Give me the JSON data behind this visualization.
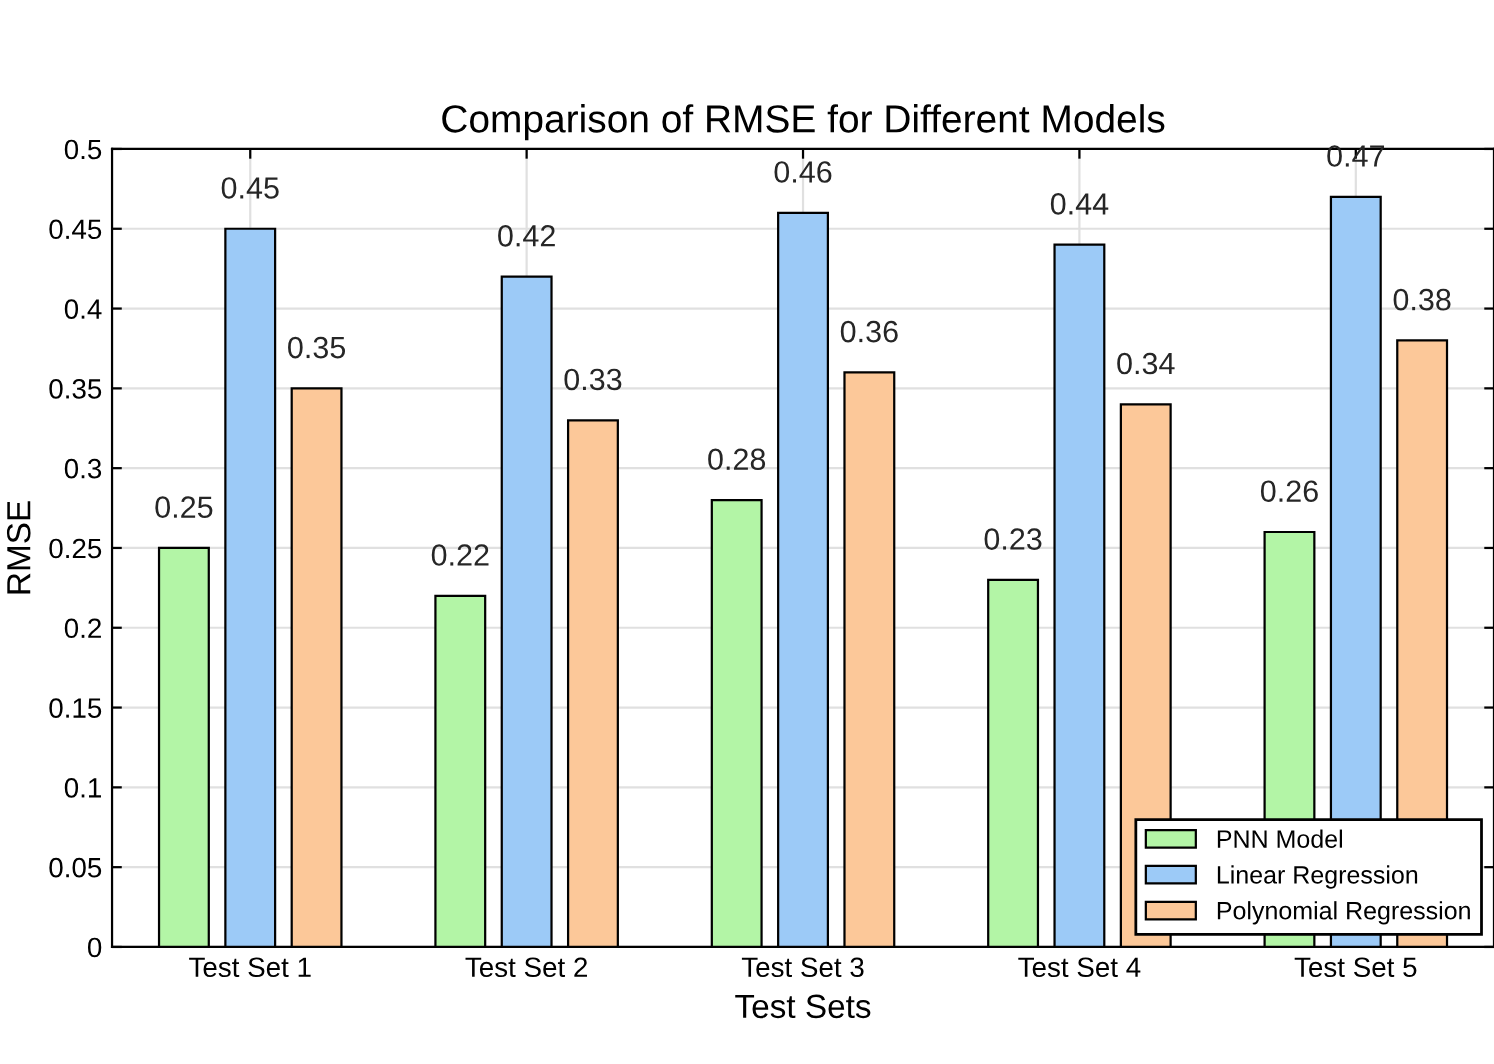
{
  "chart_data": {
    "type": "bar",
    "title": "Comparison of RMSE for Different Models",
    "xlabel": "Test Sets",
    "ylabel": "RMSE",
    "categories": [
      "Test Set 1",
      "Test Set 2",
      "Test Set 3",
      "Test Set 4",
      "Test Set 5"
    ],
    "series": [
      {
        "name": "PNN Model",
        "color": "#b3f5a6",
        "values": [
          0.25,
          0.22,
          0.28,
          0.23,
          0.26
        ]
      },
      {
        "name": "Linear Regression",
        "color": "#9ccaf7",
        "values": [
          0.45,
          0.42,
          0.46,
          0.44,
          0.47
        ]
      },
      {
        "name": "Polynomial Regression",
        "color": "#fcc899",
        "values": [
          0.35,
          0.33,
          0.36,
          0.34,
          0.38
        ]
      }
    ],
    "ylim": [
      0,
      0.5
    ],
    "yticks": [
      0,
      0.05,
      0.1,
      0.15,
      0.2,
      0.25,
      0.3,
      0.35,
      0.4,
      0.45,
      0.5
    ],
    "data_labels": true,
    "grid": true,
    "legend": "bottom right"
  }
}
